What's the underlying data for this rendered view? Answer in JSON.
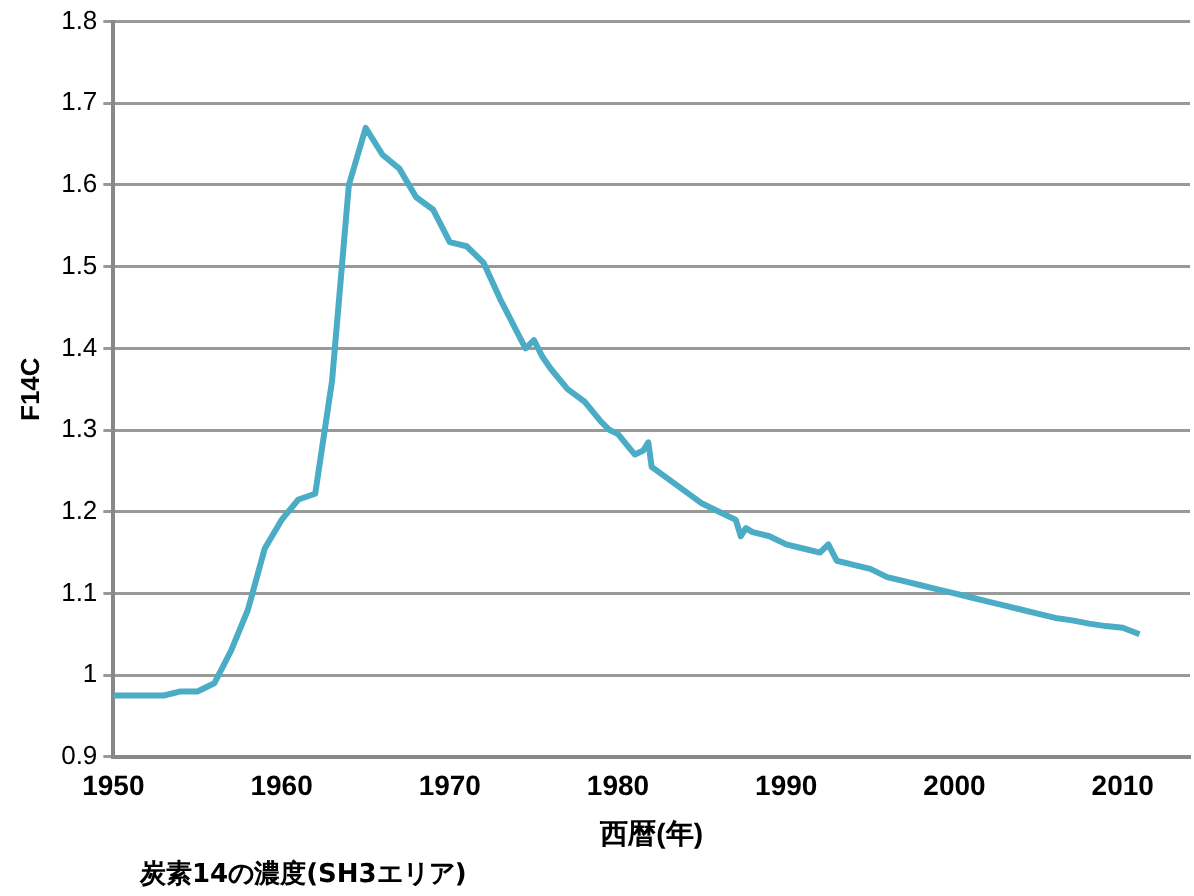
{
  "chart_data": {
    "type": "line",
    "xlabel": "西暦(年)",
    "ylabel": "F14C",
    "annotations": [
      "炭素14の濃度(SH3エリア)"
    ],
    "x": [
      1950,
      1953,
      1954,
      1955,
      1956,
      1957,
      1958,
      1959,
      1960,
      1961,
      1962,
      1963,
      1964,
      1965,
      1966,
      1967,
      1968,
      1969,
      1970,
      1971,
      1972,
      1973,
      1973.5,
      1974,
      1974.5,
      1975,
      1975.5,
      1976,
      1977,
      1978,
      1979,
      1979.5,
      1980,
      1981,
      1981.5,
      1981.8,
      1982,
      1983,
      1984,
      1985,
      1986,
      1987,
      1987.3,
      1987.6,
      1988,
      1989,
      1990,
      1991,
      1992,
      1992.5,
      1993,
      1994,
      1995,
      1996,
      1997,
      1998,
      1999,
      2000,
      2001,
      2002,
      2003,
      2004,
      2005,
      2006,
      2007,
      2008,
      2009,
      2010,
      2011
    ],
    "series": [
      {
        "color": "#4bacc6",
        "values": [
          0.975,
          0.975,
          0.98,
          0.98,
          0.99,
          1.03,
          1.08,
          1.155,
          1.19,
          1.215,
          1.222,
          1.36,
          1.6,
          1.67,
          1.637,
          1.62,
          1.585,
          1.57,
          1.53,
          1.525,
          1.505,
          1.46,
          1.44,
          1.42,
          1.4,
          1.41,
          1.39,
          1.375,
          1.35,
          1.335,
          1.31,
          1.3,
          1.295,
          1.27,
          1.275,
          1.285,
          1.255,
          1.24,
          1.225,
          1.21,
          1.2,
          1.19,
          1.17,
          1.18,
          1.175,
          1.17,
          1.16,
          1.155,
          1.15,
          1.16,
          1.14,
          1.135,
          1.13,
          1.12,
          1.115,
          1.11,
          1.105,
          1.1,
          1.095,
          1.09,
          1.085,
          1.08,
          1.075,
          1.07,
          1.067,
          1.063,
          1.06,
          1.058,
          1.05
        ]
      }
    ],
    "xlim": [
      1950,
      2014
    ],
    "xticks": [
      1950,
      1960,
      1970,
      1980,
      1990,
      2000,
      2010
    ],
    "ylim": [
      0.9,
      1.8
    ],
    "yticks": [
      0.9,
      1,
      1.1,
      1.2,
      1.3,
      1.4,
      1.5,
      1.6,
      1.7,
      1.8
    ],
    "grid": "y",
    "legend": false,
    "marker": "none",
    "line_style": "solid"
  }
}
